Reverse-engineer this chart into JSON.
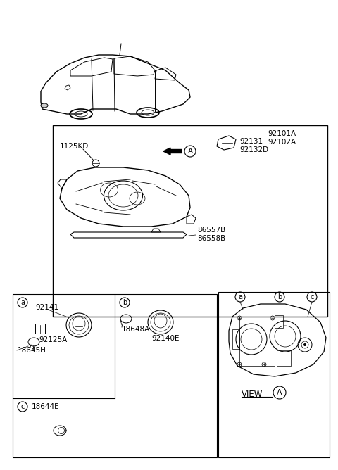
{
  "bg_color": "#ffffff",
  "text_color": "#000000",
  "figsize": [
    4.8,
    6.68
  ],
  "dpi": 100,
  "labels": {
    "part_92101A_92102A": "92101A\n92102A",
    "part_1125KD": "1125KD",
    "part_92131_92132D": "92131\n92132D",
    "part_86557B_86558B": "86557B\n86558B",
    "part_92141": "92141",
    "part_92125A": "92125A",
    "part_18645H": "18645H",
    "part_18648A": "18648A",
    "part_92140E": "92140E",
    "part_18644E": "18644E",
    "view_A": "VIEW",
    "circle_A": "A",
    "section_a": "a",
    "section_b": "b",
    "section_c": "c"
  }
}
